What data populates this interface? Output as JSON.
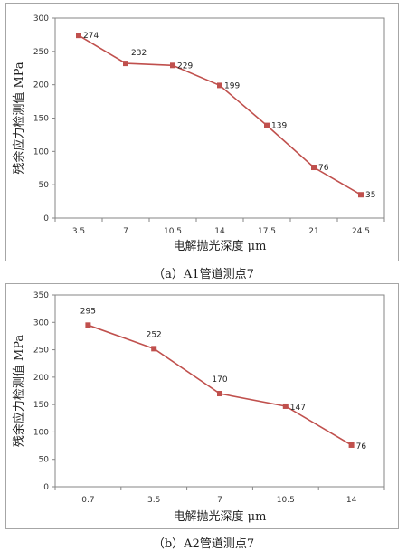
{
  "captions": [
    "（a）A1管道测点7",
    "（b）A2管道测点7"
  ],
  "colors": {
    "series": "#c0504d",
    "axis": "#868686",
    "frame": "#a6a6a6"
  },
  "chart_data": [
    {
      "type": "line",
      "title": "",
      "categories": [
        "3.5",
        "7",
        "10.5",
        "14",
        "17.5",
        "21",
        "24.5"
      ],
      "values": [
        274,
        232,
        229,
        199,
        139,
        76,
        35
      ],
      "xlabel": "电解抛光深度  μm",
      "ylabel": "残余应力检测值 MPa",
      "ylim": [
        0,
        300
      ],
      "yticks": [
        0,
        50,
        100,
        150,
        200,
        250,
        300
      ],
      "grid": false,
      "data_labels": true,
      "legend": "none"
    },
    {
      "type": "line",
      "title": "",
      "categories": [
        "0.7",
        "3.5",
        "7",
        "10.5",
        "14"
      ],
      "values": [
        295,
        252,
        170,
        147,
        76
      ],
      "xlabel": "电解抛光深度  μm",
      "ylabel": "残余应力检测值 MPa",
      "ylim": [
        0,
        350
      ],
      "yticks": [
        0,
        50,
        100,
        150,
        200,
        250,
        300,
        350
      ],
      "grid": false,
      "data_labels": true,
      "legend": "none"
    }
  ]
}
